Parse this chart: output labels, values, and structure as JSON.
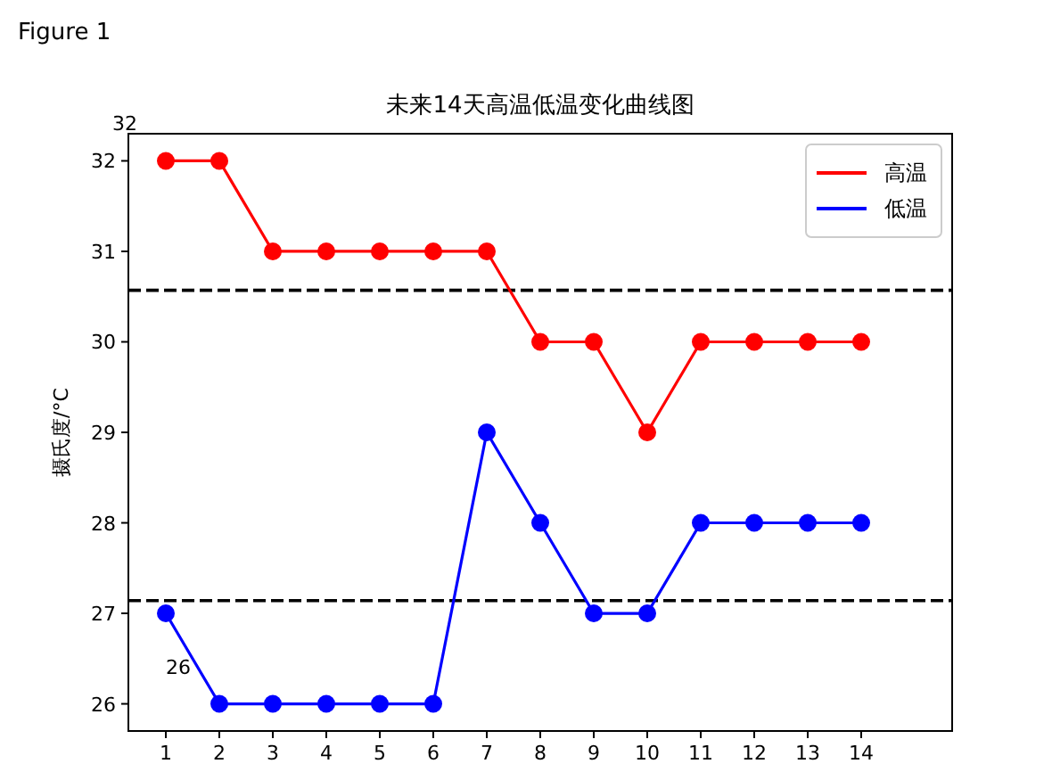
{
  "chart_data": {
    "type": "line",
    "title": "未来14天高温低温变化曲线图",
    "ylabel": "摄氏度/°C",
    "x": [
      1,
      2,
      3,
      4,
      5,
      6,
      7,
      8,
      9,
      10,
      11,
      12,
      13,
      14
    ],
    "series": [
      {
        "name": "高温",
        "color": "#ff0000",
        "values": [
          32,
          32,
          31,
          31,
          31,
          31,
          31,
          30,
          30,
          29,
          30,
          30,
          30,
          30
        ]
      },
      {
        "name": "低温",
        "color": "#0000ff",
        "values": [
          27,
          26,
          26,
          26,
          26,
          26,
          29,
          28,
          27,
          27,
          28,
          28,
          28,
          28
        ]
      }
    ],
    "xlim": [
      0.3,
      15.7
    ],
    "xticks": [
      1,
      2,
      3,
      4,
      5,
      6,
      7,
      8,
      9,
      10,
      11,
      12,
      13,
      14
    ],
    "ylim": [
      25.7,
      32.3
    ],
    "yticks": [
      26,
      27,
      28,
      29,
      30,
      31,
      32
    ],
    "marker": "circle",
    "line_style": "solid",
    "legend": "top right",
    "ref_lines": [
      {
        "axis": "y",
        "value": 30.57,
        "color": "#000000",
        "line_style": "dashed"
      },
      {
        "axis": "y",
        "value": 27.14,
        "color": "#000000",
        "line_style": "dashed"
      }
    ],
    "annotations": [
      "Figure 1",
      {
        "text": "32",
        "x": 1,
        "y": 32
      },
      {
        "text": "26",
        "x": 2,
        "y": 26
      }
    ]
  }
}
